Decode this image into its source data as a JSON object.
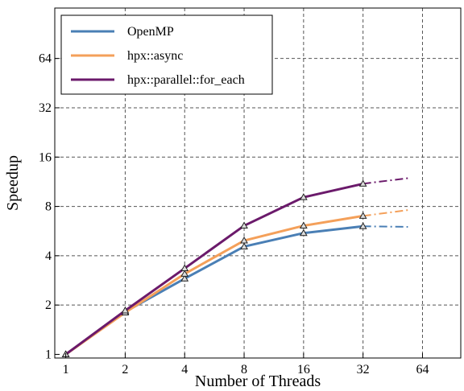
{
  "chart_data": {
    "type": "line",
    "title": "",
    "xlabel": "Number of Threads",
    "ylabel": "Speedup",
    "xscale": "log2",
    "yscale": "log2",
    "xlim": [
      0.88,
      100
    ],
    "ylim": [
      0.95,
      130
    ],
    "xticks": [
      1,
      2,
      4,
      8,
      16,
      32,
      64
    ],
    "xtick_labels": [
      "1",
      "2",
      "4",
      "8",
      "16",
      "32",
      "64"
    ],
    "yticks": [
      1,
      2,
      4,
      8,
      16,
      32,
      64
    ],
    "ytick_labels": [
      "1",
      "2",
      "4",
      "8",
      "16",
      "32",
      "64"
    ],
    "grid": true,
    "legend_position": "top-left",
    "series": [
      {
        "name": "OpenMP",
        "color": "#4a7fb5",
        "x": [
          1,
          2,
          4,
          8,
          16,
          32
        ],
        "y": [
          1.0,
          1.82,
          2.9,
          4.55,
          5.5,
          6.05
        ],
        "extrapolation": {
          "x": [
            32,
            54
          ],
          "y": [
            6.05,
            6.0
          ]
        }
      },
      {
        "name": "hpx::async",
        "color": "#f4a05a",
        "x": [
          1,
          2,
          4,
          8,
          16,
          32
        ],
        "y": [
          1.0,
          1.8,
          3.1,
          4.95,
          6.1,
          7.0
        ],
        "extrapolation": {
          "x": [
            32,
            54
          ],
          "y": [
            7.0,
            7.6
          ]
        }
      },
      {
        "name": "hpx::parallel::for_each",
        "color": "#6b1a6b",
        "x": [
          1,
          2,
          4,
          8,
          16,
          32
        ],
        "y": [
          1.0,
          1.85,
          3.35,
          6.1,
          9.1,
          11.0
        ],
        "extrapolation": {
          "x": [
            32,
            54
          ],
          "y": [
            11.0,
            11.9
          ]
        }
      }
    ]
  }
}
